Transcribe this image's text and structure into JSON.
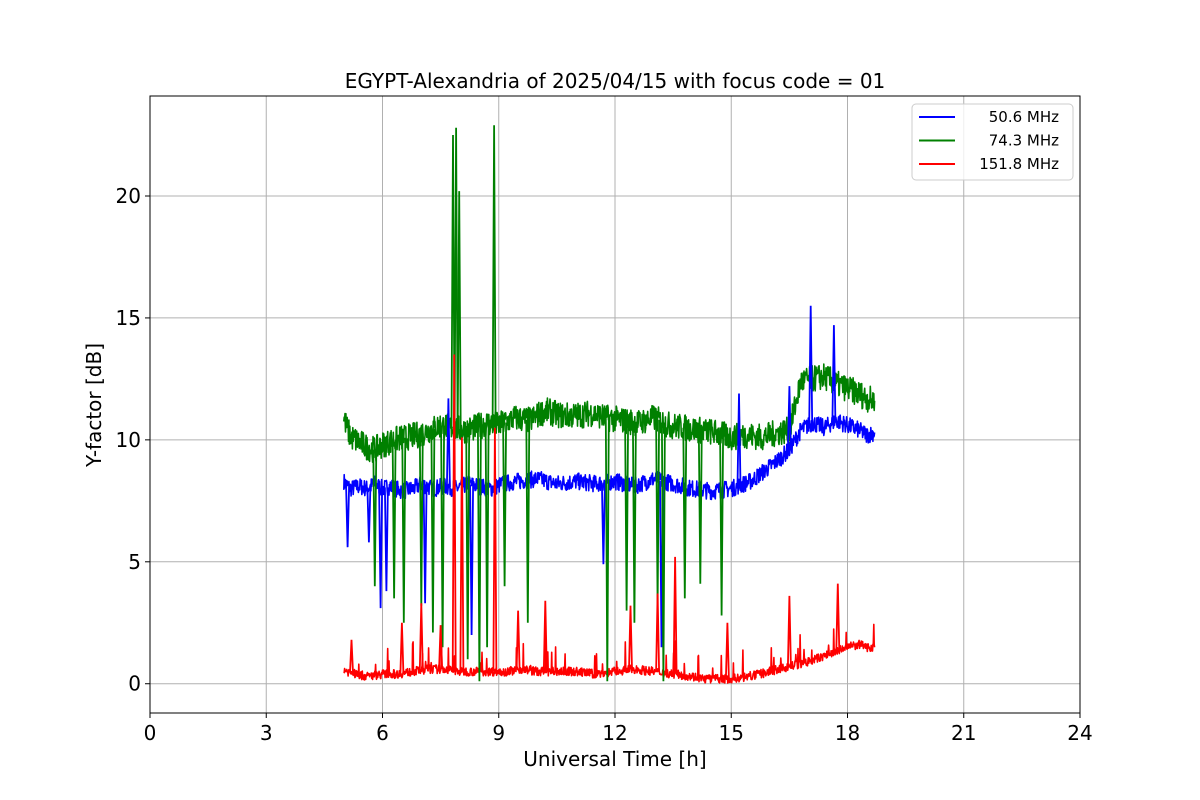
{
  "chart_data": {
    "type": "line",
    "title": "EGYPT-Alexandria of 2025/04/15 with focus code = 01",
    "xlabel": "Universal Time [h]",
    "ylabel": "Y-factor [dB]",
    "xlim": [
      0,
      24
    ],
    "ylim": [
      -1.2,
      24.1
    ],
    "xticks": [
      0,
      3,
      6,
      9,
      12,
      15,
      18,
      21,
      24
    ],
    "yticks": [
      0,
      5,
      10,
      15,
      20
    ],
    "grid": true,
    "legend_position": "top-right",
    "series": [
      {
        "name": "50.6 MHz",
        "color": "#0000ff",
        "x": [
          5.0,
          5.1,
          5.2,
          5.4,
          5.6,
          5.8,
          6.0,
          6.2,
          6.5,
          6.8,
          7.0,
          7.3,
          7.6,
          7.9,
          8.2,
          8.5,
          8.8,
          9.1,
          9.5,
          10.0,
          10.5,
          11.0,
          11.5,
          12.0,
          12.5,
          13.0,
          13.5,
          14.0,
          14.5,
          15.0,
          15.5,
          16.0,
          16.3,
          16.5,
          16.8,
          17.1,
          17.4,
          17.7,
          18.0,
          18.3,
          18.5,
          18.7
        ],
        "y": [
          8.3,
          8.1,
          8.0,
          8.1,
          8.0,
          8.2,
          8.0,
          8.1,
          7.9,
          8.0,
          8.2,
          8.0,
          8.1,
          8.0,
          8.2,
          8.1,
          8.0,
          8.2,
          8.3,
          8.4,
          8.2,
          8.3,
          8.2,
          8.3,
          8.1,
          8.4,
          8.2,
          8.0,
          7.9,
          8.0,
          8.3,
          8.9,
          9.3,
          9.6,
          10.4,
          10.7,
          10.5,
          10.8,
          10.6,
          10.4,
          10.2,
          10.3
        ]
      },
      {
        "name": "74.3 MHz",
        "color": "#008000",
        "x": [
          5.0,
          5.1,
          5.2,
          5.4,
          5.6,
          5.8,
          6.0,
          6.3,
          6.6,
          6.9,
          7.2,
          7.5,
          7.8,
          8.1,
          8.4,
          8.7,
          9.0,
          9.4,
          9.8,
          10.2,
          10.6,
          11.0,
          11.4,
          11.8,
          12.2,
          12.6,
          13.0,
          13.4,
          13.8,
          14.2,
          14.6,
          15.0,
          15.4,
          15.8,
          16.2,
          16.5,
          16.8,
          17.1,
          17.4,
          17.7,
          18.0,
          18.3,
          18.5,
          18.7
        ],
        "y": [
          10.9,
          10.4,
          10.1,
          9.9,
          9.7,
          9.6,
          9.8,
          10.0,
          10.1,
          10.2,
          10.4,
          10.6,
          10.5,
          10.4,
          10.5,
          10.7,
          10.6,
          10.9,
          10.8,
          11.2,
          11.0,
          11.0,
          11.1,
          10.9,
          10.8,
          10.7,
          10.9,
          10.6,
          10.5,
          10.4,
          10.3,
          10.1,
          10.2,
          10.1,
          10.3,
          10.4,
          12.4,
          12.5,
          12.6,
          12.3,
          12.1,
          11.9,
          11.7,
          11.6
        ]
      },
      {
        "name": "151.8 MHz",
        "color": "#ff0000",
        "x": [
          5.0,
          5.1,
          5.3,
          5.6,
          6.0,
          6.4,
          6.8,
          7.2,
          7.6,
          8.0,
          8.4,
          8.8,
          9.2,
          9.6,
          10.0,
          10.5,
          11.0,
          11.5,
          12.0,
          12.5,
          13.0,
          13.5,
          14.0,
          14.3,
          14.6,
          15.0,
          15.5,
          16.0,
          16.5,
          17.0,
          17.5,
          18.0,
          18.3,
          18.5,
          18.7
        ],
        "y": [
          0.6,
          0.5,
          0.4,
          0.3,
          0.4,
          0.4,
          0.5,
          0.6,
          0.6,
          0.5,
          0.5,
          0.5,
          0.5,
          0.6,
          0.5,
          0.5,
          0.5,
          0.4,
          0.5,
          0.6,
          0.5,
          0.4,
          0.3,
          0.2,
          0.2,
          0.2,
          0.3,
          0.5,
          0.7,
          0.9,
          1.2,
          1.5,
          1.6,
          1.5,
          1.5
        ]
      }
    ],
    "spikes": [
      {
        "series": 0,
        "x": 5.1,
        "y": 5.6
      },
      {
        "series": 0,
        "x": 5.65,
        "y": 5.8
      },
      {
        "series": 0,
        "x": 5.95,
        "y": 3.1
      },
      {
        "series": 0,
        "x": 6.1,
        "y": 3.8
      },
      {
        "series": 0,
        "x": 7.1,
        "y": 3.3
      },
      {
        "series": 0,
        "x": 7.7,
        "y": 11.7
      },
      {
        "series": 0,
        "x": 8.3,
        "y": 2.0
      },
      {
        "series": 0,
        "x": 11.7,
        "y": 4.9
      },
      {
        "series": 0,
        "x": 13.2,
        "y": 1.5
      },
      {
        "series": 0,
        "x": 15.2,
        "y": 11.9
      },
      {
        "series": 0,
        "x": 16.5,
        "y": 12.2
      },
      {
        "series": 0,
        "x": 17.05,
        "y": 15.5
      },
      {
        "series": 0,
        "x": 17.65,
        "y": 14.7
      },
      {
        "series": 1,
        "x": 5.8,
        "y": 4.0
      },
      {
        "series": 1,
        "x": 6.3,
        "y": 3.5
      },
      {
        "series": 1,
        "x": 6.55,
        "y": 2.5
      },
      {
        "series": 1,
        "x": 7.0,
        "y": 3.2
      },
      {
        "series": 1,
        "x": 7.3,
        "y": 2.1
      },
      {
        "series": 1,
        "x": 7.55,
        "y": 1.5
      },
      {
        "series": 1,
        "x": 7.82,
        "y": 22.5
      },
      {
        "series": 1,
        "x": 7.9,
        "y": 22.8
      },
      {
        "series": 1,
        "x": 7.98,
        "y": 20.2
      },
      {
        "series": 1,
        "x": 8.2,
        "y": 1.0
      },
      {
        "series": 1,
        "x": 8.5,
        "y": 0.1
      },
      {
        "series": 1,
        "x": 8.7,
        "y": 1.5
      },
      {
        "series": 1,
        "x": 8.88,
        "y": 22.9
      },
      {
        "series": 1,
        "x": 9.15,
        "y": 4.0
      },
      {
        "series": 1,
        "x": 9.75,
        "y": 2.5
      },
      {
        "series": 1,
        "x": 11.8,
        "y": 0.1
      },
      {
        "series": 1,
        "x": 12.3,
        "y": 3.0
      },
      {
        "series": 1,
        "x": 12.5,
        "y": 2.5
      },
      {
        "series": 1,
        "x": 13.1,
        "y": 3.2
      },
      {
        "series": 1,
        "x": 13.25,
        "y": 0.1
      },
      {
        "series": 1,
        "x": 13.8,
        "y": 3.5
      },
      {
        "series": 1,
        "x": 14.2,
        "y": 4.1
      },
      {
        "series": 1,
        "x": 14.75,
        "y": 2.8
      },
      {
        "series": 2,
        "x": 5.2,
        "y": 1.8
      },
      {
        "series": 2,
        "x": 6.5,
        "y": 2.5
      },
      {
        "series": 2,
        "x": 7.0,
        "y": 3.3
      },
      {
        "series": 2,
        "x": 7.5,
        "y": 2.4
      },
      {
        "series": 2,
        "x": 7.85,
        "y": 13.5
      },
      {
        "series": 2,
        "x": 8.05,
        "y": 10.1
      },
      {
        "series": 2,
        "x": 8.9,
        "y": 10.5
      },
      {
        "series": 2,
        "x": 9.5,
        "y": 3.0
      },
      {
        "series": 2,
        "x": 10.2,
        "y": 3.4
      },
      {
        "series": 2,
        "x": 12.4,
        "y": 3.2
      },
      {
        "series": 2,
        "x": 13.1,
        "y": 3.7
      },
      {
        "series": 2,
        "x": 13.55,
        "y": 5.2
      },
      {
        "series": 2,
        "x": 14.9,
        "y": 2.5
      },
      {
        "series": 2,
        "x": 16.5,
        "y": 3.6
      },
      {
        "series": 2,
        "x": 17.75,
        "y": 4.1
      }
    ]
  }
}
